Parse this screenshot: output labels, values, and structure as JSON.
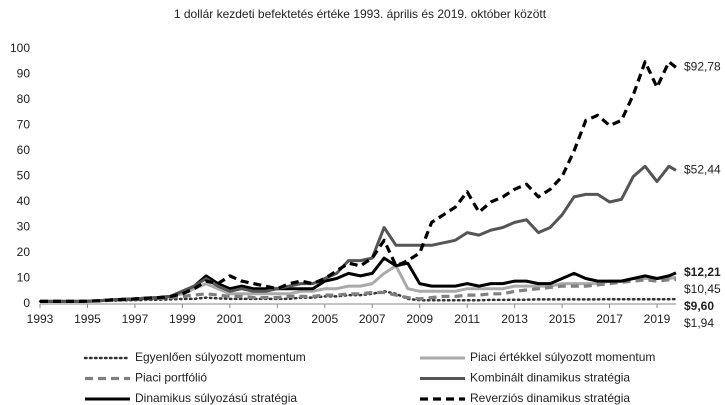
{
  "chart_data": {
    "type": "line",
    "title": "1 dollár kezdeti befektetés értéke 1993. április és 2019. október között",
    "x": [
      1993,
      1993.5,
      1994,
      1994.5,
      1995,
      1995.5,
      1996,
      1996.5,
      1997,
      1997.5,
      1998,
      1998.5,
      1999,
      1999.5,
      2000,
      2000.5,
      2001,
      2001.5,
      2002,
      2002.5,
      2003,
      2003.5,
      2004,
      2004.5,
      2005,
      2005.5,
      2006,
      2006.5,
      2007,
      2007.5,
      2008,
      2008.5,
      2009,
      2009.5,
      2010,
      2010.5,
      2011,
      2011.5,
      2012,
      2012.5,
      2013,
      2013.5,
      2014,
      2014.5,
      2015,
      2015.5,
      2016,
      2016.5,
      2017,
      2017.5,
      2018,
      2018.5,
      2019,
      2019.5,
      2019.8
    ],
    "xlim": [
      1993,
      2019.8
    ],
    "xticks": [
      1993,
      1995,
      1997,
      1999,
      2001,
      2003,
      2005,
      2007,
      2009,
      2011,
      2013,
      2015,
      2017,
      2019
    ],
    "ylim": [
      0,
      100
    ],
    "yticks": [
      0,
      10,
      20,
      30,
      40,
      50,
      60,
      70,
      80,
      90,
      100
    ],
    "grid": false,
    "legend": "bottom",
    "series": [
      {
        "name": "Egyenlően súlyozott momentum",
        "color": "#333333",
        "style": "dotted",
        "end_label": "$1,94",
        "end_label_bold": false,
        "values": [
          1,
          1,
          1,
          1,
          1.1,
          1.2,
          1.3,
          1.4,
          1.5,
          1.6,
          1.7,
          1.8,
          2,
          2,
          2.5,
          2.2,
          2,
          2,
          2,
          2,
          2,
          2,
          2.5,
          2.5,
          3,
          3,
          3.5,
          3.5,
          4,
          5,
          4,
          2,
          1.5,
          1.5,
          1.5,
          1.5,
          1.5,
          1.5,
          1.6,
          1.6,
          1.7,
          1.7,
          1.8,
          1.8,
          1.8,
          1.8,
          1.8,
          1.8,
          1.9,
          1.9,
          1.9,
          1.9,
          1.9,
          1.9,
          1.94
        ]
      },
      {
        "name": "Piaci értékkel súlyozott momentum",
        "color": "#aaaaaa",
        "style": "solid",
        "end_label": "$10,45",
        "end_label_bold": false,
        "values": [
          1,
          1,
          1,
          1,
          1.1,
          1.3,
          1.6,
          1.8,
          2,
          2.3,
          2.5,
          3,
          4,
          6,
          8,
          6,
          4,
          4,
          4,
          4,
          4,
          4,
          5,
          5,
          6,
          6,
          7,
          7,
          8,
          12,
          15,
          6,
          5,
          5,
          5,
          5,
          6,
          6,
          6,
          6,
          7,
          7,
          7,
          7,
          8,
          8,
          8,
          8,
          9,
          9,
          10,
          10,
          10,
          10,
          10.45
        ]
      },
      {
        "name": "Piaci portfólió",
        "color": "#808080",
        "style": "dashed",
        "end_label": "$9,60",
        "end_label_bold": true,
        "values": [
          1,
          1,
          1,
          1,
          1.1,
          1.2,
          1.4,
          1.6,
          1.8,
          2,
          2.2,
          2.5,
          3,
          3.5,
          4,
          3.5,
          3,
          3,
          2.5,
          2.5,
          2.5,
          3,
          3,
          3,
          3.5,
          3.5,
          4,
          4,
          4.5,
          4.5,
          3.5,
          2.5,
          2,
          2.5,
          3,
          3,
          3.5,
          3.5,
          4,
          4,
          5,
          5.5,
          6,
          6.5,
          7,
          7,
          7,
          7.5,
          8,
          8.5,
          9,
          9.5,
          9,
          9.5,
          9.6
        ]
      },
      {
        "name": "Kombinált dinamikus stratégia",
        "color": "#555555",
        "style": "solid",
        "end_label": "$52,44",
        "end_label_bold": false,
        "values": [
          1,
          1,
          1,
          1,
          1.1,
          1.3,
          1.6,
          1.8,
          2,
          2.3,
          2.5,
          3,
          5,
          7,
          10,
          7,
          5,
          6,
          5,
          5,
          6,
          7,
          8,
          8,
          10,
          12,
          17,
          17,
          18,
          30,
          23,
          23,
          23,
          23,
          24,
          25,
          28,
          27,
          29,
          30,
          32,
          33,
          28,
          30,
          35,
          42,
          43,
          43,
          40,
          41,
          50,
          54,
          48,
          54,
          52.44
        ]
      },
      {
        "name": "Dinamikus súlyozású stratégia",
        "color": "#000000",
        "style": "solid",
        "end_label": "$12,21",
        "end_label_bold": true,
        "values": [
          1,
          1,
          1,
          1,
          1.1,
          1.3,
          1.6,
          1.8,
          2,
          2.3,
          2.5,
          3,
          5,
          7,
          11,
          8,
          6,
          7,
          6,
          6,
          6,
          6,
          6,
          6,
          9,
          10,
          12,
          11,
          12,
          18,
          15,
          16,
          8,
          7,
          7,
          7,
          8,
          7,
          8,
          8,
          9,
          9,
          8,
          8,
          10,
          12,
          10,
          9,
          9,
          9,
          10,
          11,
          10,
          11,
          12.21
        ]
      },
      {
        "name": "Reverziós dinamikus stratégia",
        "color": "#000000",
        "style": "dashed",
        "end_label": "$92,78",
        "end_label_bold": false,
        "values": [
          1,
          1,
          1,
          1,
          1.1,
          1.3,
          1.6,
          1.8,
          2,
          2.3,
          2.5,
          3,
          4,
          6,
          9,
          8,
          11,
          9,
          8,
          7,
          6,
          8,
          9,
          8,
          10,
          13,
          16,
          15,
          18,
          25,
          15,
          17,
          20,
          32,
          35,
          38,
          44,
          36,
          40,
          42,
          45,
          47,
          42,
          45,
          50,
          60,
          72,
          74,
          70,
          72,
          82,
          95,
          85,
          95,
          92.78
        ]
      }
    ]
  }
}
